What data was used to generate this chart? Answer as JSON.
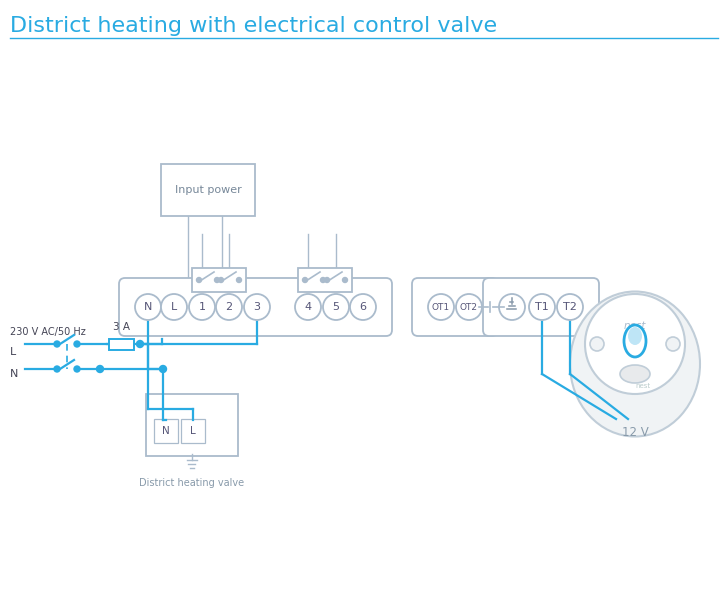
{
  "title": "District heating with electrical control valve",
  "title_color": "#29ABE2",
  "title_fontsize": 16,
  "line_color": "#29ABE2",
  "gray_ec": "#AABBCC",
  "light_gray": "#C0CDD8",
  "bg_color": "#FFFFFF",
  "terminal_labels_main": [
    "N",
    "L",
    "1",
    "2",
    "3",
    "4",
    "5",
    "6"
  ],
  "ot_labels": [
    "OT1",
    "OT2"
  ],
  "right_labels": [
    "T1",
    "T2"
  ],
  "input_power_text": "Input power",
  "dhv_text": "District heating valve",
  "volt_text": "12 V",
  "voltage_label": "230 V AC/50 Hz",
  "fuse_label": "3 A",
  "label_L": "L",
  "label_N": "N",
  "terminal_color": "#8BAFC4",
  "wire_lw": 1.6,
  "strip_lw": 1.3
}
